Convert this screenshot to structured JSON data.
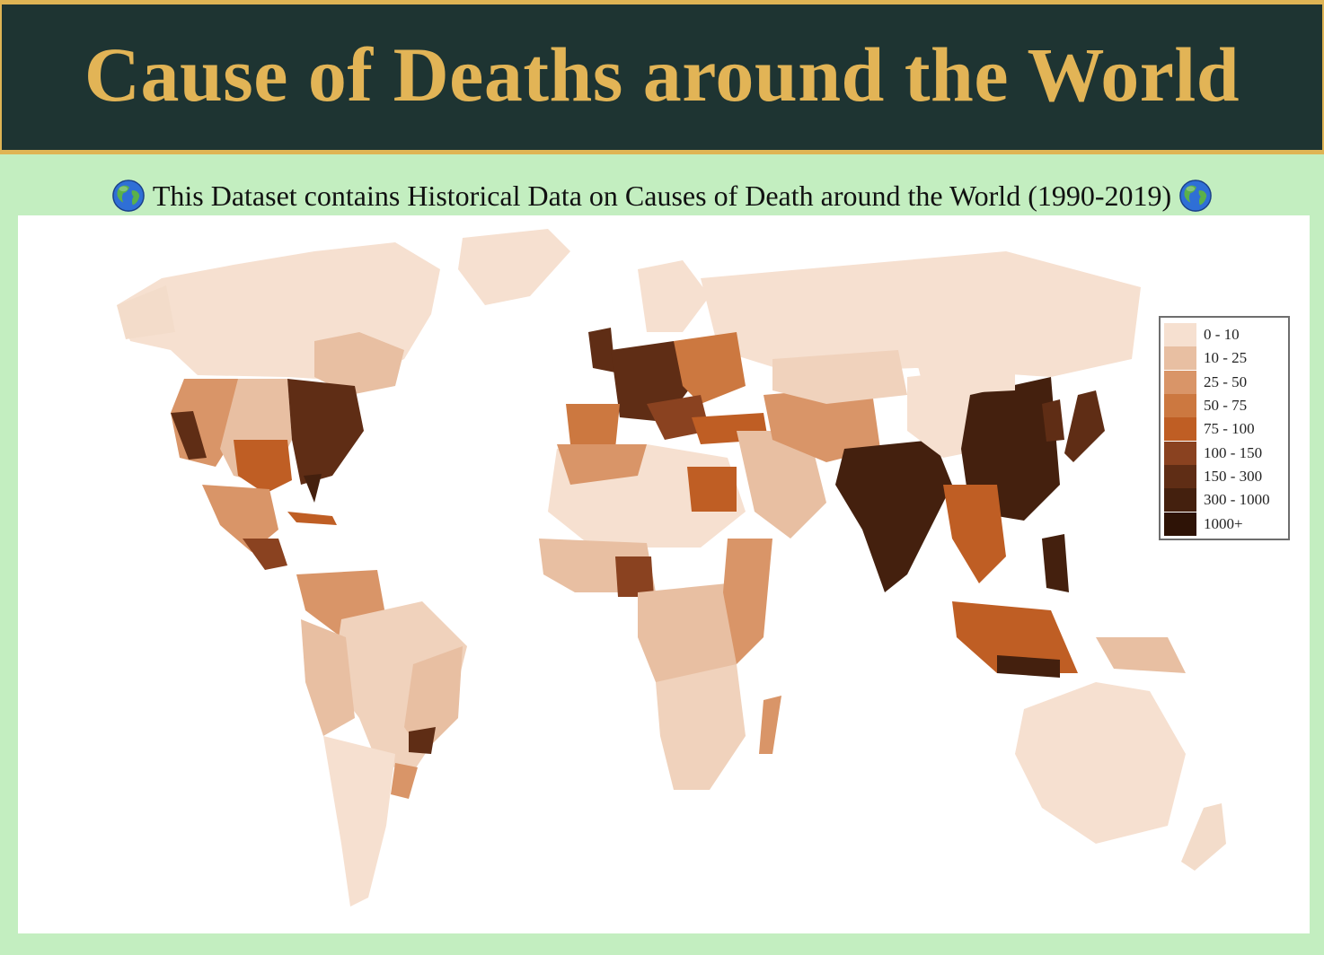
{
  "header": {
    "title": "Cause of Deaths around the World",
    "bg_color": "#1e3432",
    "title_color": "#e2b456",
    "border_color": "#dfb454"
  },
  "subtitle": {
    "text": "This Dataset contains Historical Data on Causes of Death around the World (1990-2019)",
    "icon": "globe-icon"
  },
  "legend": {
    "items": [
      {
        "label": "0 - 10",
        "color": "#f6e0d0"
      },
      {
        "label": "10 - 25",
        "color": "#e8bfa2"
      },
      {
        "label": "25 - 50",
        "color": "#d99568"
      },
      {
        "label": "50 - 75",
        "color": "#cc7840"
      },
      {
        "label": "75 - 100",
        "color": "#bf5e24"
      },
      {
        "label": "100 - 150",
        "color": "#8a4220"
      },
      {
        "label": "150 - 300",
        "color": "#5f2d15"
      },
      {
        "label": "300 - 1000",
        "color": "#44200e"
      },
      {
        "label": "1000+",
        "color": "#2e1306"
      }
    ]
  },
  "map": {
    "background": "#ffffff",
    "land_base_color": "#f6e0d0"
  }
}
